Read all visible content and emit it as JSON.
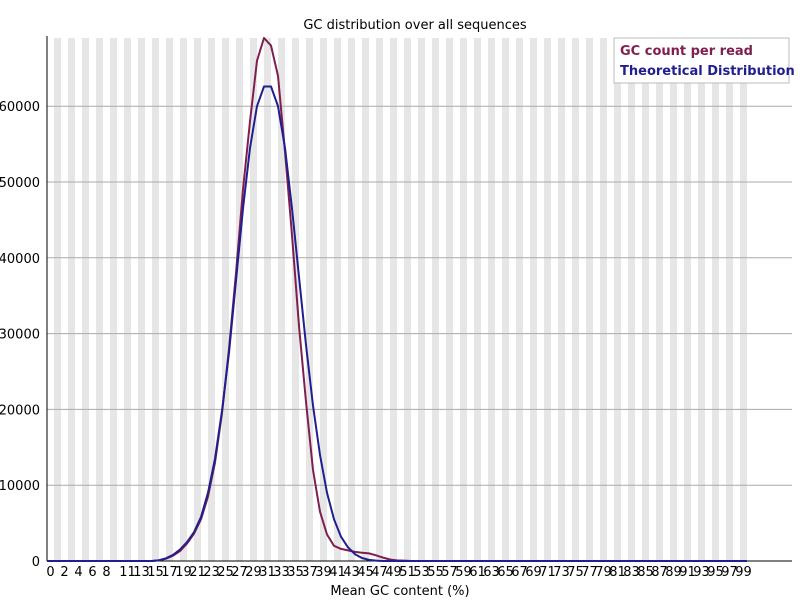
{
  "chart_data": {
    "type": "line",
    "title": "GC distribution over all sequences",
    "xlabel": "Mean GC content (%)",
    "ylabel": "",
    "xlim": [
      0,
      100
    ],
    "ylim": [
      0,
      69000
    ],
    "y_ticks": [
      0,
      10000,
      20000,
      30000,
      40000,
      50000,
      60000
    ],
    "x_ticks": [
      0,
      2,
      4,
      6,
      8,
      11,
      13,
      15,
      17,
      19,
      21,
      23,
      25,
      27,
      29,
      31,
      33,
      35,
      37,
      39,
      41,
      43,
      45,
      47,
      49,
      51,
      53,
      55,
      57,
      59,
      61,
      63,
      65,
      67,
      69,
      71,
      73,
      75,
      77,
      79,
      81,
      83,
      85,
      87,
      89,
      91,
      93,
      95,
      97,
      99
    ],
    "x_tick_labels": [
      "0",
      "2",
      "4",
      "6",
      "8",
      "11",
      "13",
      "15",
      "17",
      "19",
      "21",
      "23",
      "25",
      "27",
      "29",
      "31",
      "33",
      "35",
      "37",
      "39",
      "41",
      "43",
      "45",
      "47",
      "49",
      "51",
      "53",
      "55",
      "57",
      "59",
      "61",
      "63",
      "65",
      "67",
      "69",
      "71",
      "73",
      "75",
      "77",
      "79",
      "81",
      "83",
      "85",
      "87",
      "89",
      "91",
      "93",
      "95",
      "97",
      "99"
    ],
    "grid": true,
    "legend_position": "top-right",
    "background_stripes": "alternating vertical light-grey bands per category",
    "x": [
      0,
      1,
      2,
      3,
      4,
      5,
      6,
      7,
      8,
      9,
      10,
      11,
      12,
      13,
      14,
      15,
      16,
      17,
      18,
      19,
      20,
      21,
      22,
      23,
      24,
      25,
      26,
      27,
      28,
      29,
      30,
      31,
      32,
      33,
      34,
      35,
      36,
      37,
      38,
      39,
      40,
      41,
      42,
      43,
      44,
      45,
      46,
      47,
      48,
      49,
      50,
      51,
      52,
      53,
      54,
      55,
      56,
      57,
      58,
      59,
      60,
      61,
      62,
      63,
      64,
      65,
      66,
      67,
      68,
      69,
      70,
      71,
      72,
      73,
      74,
      75,
      76,
      77,
      78,
      79,
      80,
      81,
      82,
      83,
      84,
      85,
      86,
      87,
      88,
      89,
      90,
      91,
      92,
      93,
      94,
      95,
      96,
      97,
      98,
      99,
      100
    ],
    "series": [
      {
        "name": "GC count per read",
        "color": "#7f1f4f",
        "values": [
          0,
          0,
          0,
          0,
          0,
          0,
          0,
          0,
          0,
          0,
          0,
          0,
          0,
          0,
          0,
          0,
          80,
          300,
          700,
          1300,
          2300,
          3600,
          5500,
          8500,
          13000,
          19500,
          28000,
          38000,
          49000,
          58000,
          66000,
          69000,
          68000,
          64000,
          54000,
          43000,
          31000,
          21000,
          12000,
          6500,
          3500,
          2000,
          1600,
          1400,
          1200,
          1100,
          1000,
          750,
          450,
          200,
          80,
          50,
          0,
          0,
          0,
          0,
          0,
          0,
          0,
          0,
          0,
          0,
          0,
          0,
          0,
          0,
          0,
          0,
          0,
          0,
          0,
          0,
          0,
          0,
          0,
          0,
          0,
          0,
          0,
          0,
          0,
          0,
          0,
          0,
          0,
          0,
          0,
          0,
          0,
          0,
          0,
          0,
          0,
          0,
          0,
          0,
          0,
          0,
          0,
          0,
          0
        ]
      },
      {
        "name": "Theoretical Distribution",
        "color": "#1f1f8f",
        "values": [
          0,
          0,
          0,
          0,
          0,
          0,
          0,
          0,
          0,
          0,
          0,
          0,
          0,
          0,
          0,
          0,
          100,
          350,
          800,
          1500,
          2500,
          3800,
          5800,
          9000,
          13500,
          19800,
          27500,
          37000,
          46500,
          54500,
          60000,
          62600,
          62600,
          60000,
          54500,
          46500,
          37500,
          28500,
          20500,
          14000,
          9000,
          5500,
          3200,
          1800,
          900,
          400,
          150,
          50,
          0,
          0,
          0,
          0,
          0,
          0,
          0,
          0,
          0,
          0,
          0,
          0,
          0,
          0,
          0,
          0,
          0,
          0,
          0,
          0,
          0,
          0,
          0,
          0,
          0,
          0,
          0,
          0,
          0,
          0,
          0,
          0,
          0,
          0,
          0,
          0,
          0,
          0,
          0,
          0,
          0,
          0,
          0,
          0,
          0,
          0,
          0,
          0,
          0,
          0,
          0,
          0,
          0
        ]
      }
    ]
  }
}
